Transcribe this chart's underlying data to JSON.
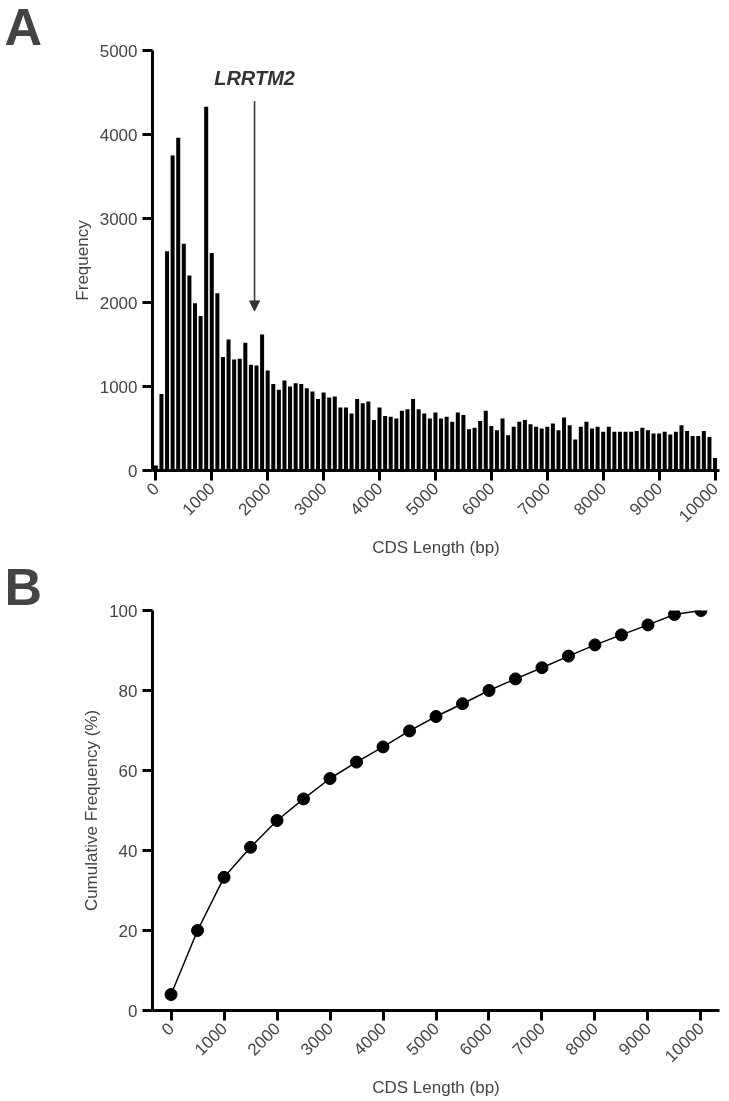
{
  "chart_data": [
    {
      "type": "bar",
      "xlabel": "CDS Length (bp)",
      "ylabel": "Frequency",
      "x": [
        0,
        100,
        200,
        300,
        400,
        500,
        600,
        700,
        800,
        900,
        1000,
        1100,
        1200,
        1300,
        1400,
        1500,
        1600,
        1700,
        1800,
        1900,
        2000,
        2100,
        2200,
        2300,
        2400,
        2500,
        2600,
        2700,
        2800,
        2900,
        3000,
        3100,
        3200,
        3300,
        3400,
        3500,
        3600,
        3700,
        3800,
        3900,
        4000,
        4100,
        4200,
        4300,
        4400,
        4500,
        4600,
        4700,
        4800,
        4900,
        5000,
        5100,
        5200,
        5300,
        5400,
        5500,
        5600,
        5700,
        5800,
        5900,
        6000,
        6100,
        6200,
        6300,
        6400,
        6500,
        6600,
        6700,
        6800,
        6900,
        7000,
        7100,
        7200,
        7300,
        7400,
        7500,
        7600,
        7700,
        7800,
        7900,
        8000,
        8100,
        8200,
        8300,
        8400,
        8500,
        8600,
        8700,
        8800,
        8900,
        9000,
        9100,
        9200,
        9300,
        9400,
        9500,
        9600,
        9700,
        9800,
        9900,
        10000
      ],
      "values": [
        60,
        910,
        2610,
        3750,
        3960,
        2700,
        2320,
        1990,
        1840,
        4330,
        2590,
        2110,
        1350,
        1560,
        1320,
        1330,
        1520,
        1260,
        1250,
        1620,
        1190,
        1030,
        960,
        1070,
        1000,
        1040,
        1030,
        980,
        940,
        850,
        930,
        870,
        880,
        750,
        750,
        680,
        850,
        800,
        820,
        600,
        750,
        650,
        640,
        620,
        710,
        730,
        850,
        730,
        680,
        620,
        690,
        620,
        640,
        580,
        690,
        660,
        490,
        510,
        590,
        710,
        530,
        480,
        620,
        420,
        520,
        580,
        600,
        550,
        520,
        500,
        520,
        560,
        480,
        630,
        540,
        370,
        520,
        580,
        500,
        520,
        460,
        520,
        460,
        460,
        460,
        460,
        470,
        510,
        480,
        440,
        440,
        460,
        430,
        460,
        540,
        470,
        410,
        410,
        470,
        400,
        150
      ],
      "color": "#000000",
      "xlim": [
        -60,
        10080
      ],
      "xticks": [
        0,
        1000,
        2000,
        3000,
        4000,
        5000,
        6000,
        7000,
        8000,
        9000,
        10000
      ],
      "ylim": [
        0,
        5000
      ],
      "yticks": [
        0,
        1000,
        2000,
        3000,
        4000,
        5000
      ],
      "annotations": [
        "A",
        "LRRTM2"
      ]
    },
    {
      "type": "line",
      "xlabel": "CDS Length (bp)",
      "ylabel": "Cumulative Frequency (%)",
      "x": [
        0,
        500,
        1000,
        1500,
        2000,
        2500,
        3000,
        3500,
        4000,
        4500,
        5000,
        5500,
        6000,
        6500,
        7000,
        7500,
        8000,
        8500,
        9000,
        9500,
        10000
      ],
      "values": [
        4,
        20,
        33.3,
        40.8,
        47.5,
        52.9,
        58,
        62.1,
        65.9,
        69.9,
        73.5,
        76.7,
        80,
        82.9,
        85.7,
        88.6,
        91.4,
        93.9,
        96.4,
        99,
        100
      ],
      "color": "#000000",
      "marker": "circle",
      "xlim": [
        -350,
        10350
      ],
      "xticks": [
        0,
        1000,
        2000,
        3000,
        4000,
        5000,
        6000,
        7000,
        8000,
        9000,
        10000
      ],
      "ylim": [
        0,
        100
      ],
      "yticks": [
        0,
        20,
        40,
        60,
        80,
        100
      ],
      "annotations": [
        "B"
      ]
    }
  ]
}
